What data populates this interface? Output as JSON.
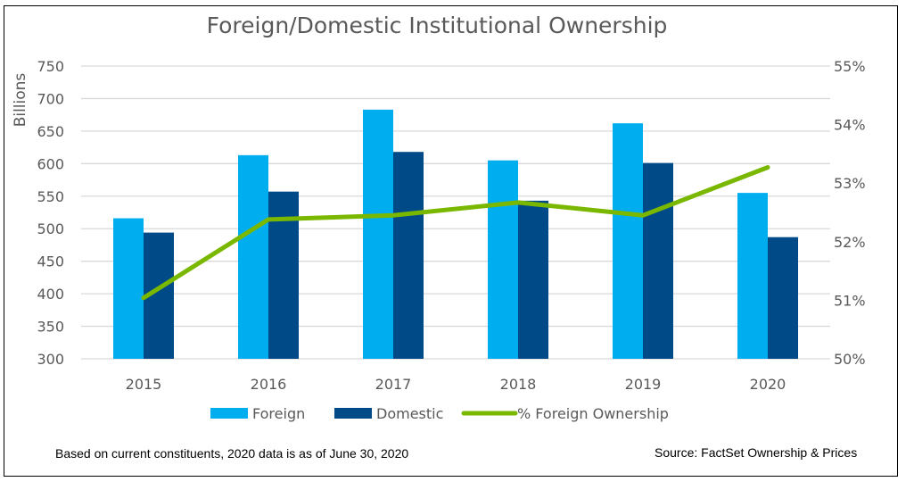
{
  "chart_data": {
    "type": "bar+line",
    "title": "Foreign/Domestic Institutional Ownership",
    "ylabel": "Billions",
    "y2label": "",
    "categories": [
      "2015",
      "2016",
      "2017",
      "2018",
      "2019",
      "2020"
    ],
    "ylim": [
      300,
      750
    ],
    "yticks": [
      300,
      350,
      400,
      450,
      500,
      550,
      600,
      650,
      700,
      750
    ],
    "y2lim": [
      50,
      55
    ],
    "y2ticks": [
      "50%",
      "51%",
      "52%",
      "53%",
      "54%",
      "55%"
    ],
    "grid": true,
    "legend_placement": "bottom",
    "series": [
      {
        "name": "Foreign",
        "type": "bar",
        "axis": "left",
        "color": "#00AEEF",
        "values": [
          516,
          613,
          683,
          605,
          662,
          555
        ]
      },
      {
        "name": "Domestic",
        "type": "bar",
        "axis": "left",
        "color": "#004A87",
        "values": [
          494,
          557,
          618,
          543,
          601,
          487
        ]
      },
      {
        "name": "% Foreign Ownership",
        "type": "line",
        "axis": "right",
        "color": "#7AB800",
        "values": [
          51.04,
          52.38,
          52.45,
          52.67,
          52.45,
          53.27
        ]
      }
    ]
  },
  "footnote": "Based on current constituents, 2020 data is as of June 30, 2020",
  "source": "Source: FactSet Ownership & Prices"
}
